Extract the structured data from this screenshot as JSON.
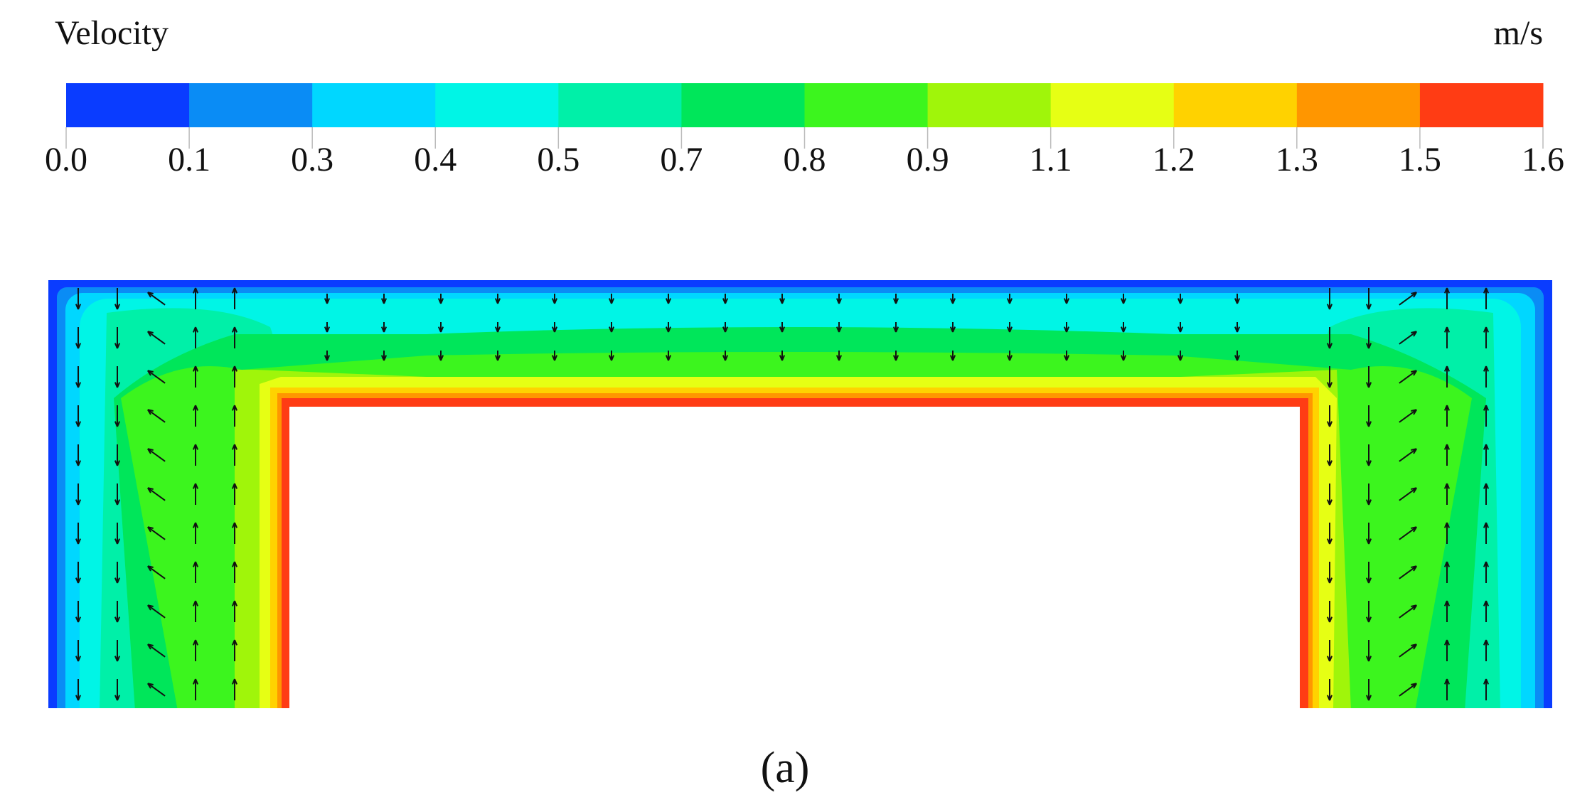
{
  "legend": {
    "title": "Velocity",
    "unit": "m/s",
    "ticks": [
      "0.0",
      "0.1",
      "0.3",
      "0.4",
      "0.5",
      "0.7",
      "0.8",
      "0.9",
      "1.1",
      "1.2",
      "1.3",
      "1.5",
      "1.6"
    ],
    "colors": [
      "#0a3cff",
      "#0a8cf5",
      "#00d7ff",
      "#00f5e6",
      "#00f0a8",
      "#00e65a",
      "#3cf51e",
      "#a0f50a",
      "#e6ff14",
      "#ffd200",
      "#ff9600",
      "#ff3c14"
    ]
  },
  "caption": "(a)"
}
